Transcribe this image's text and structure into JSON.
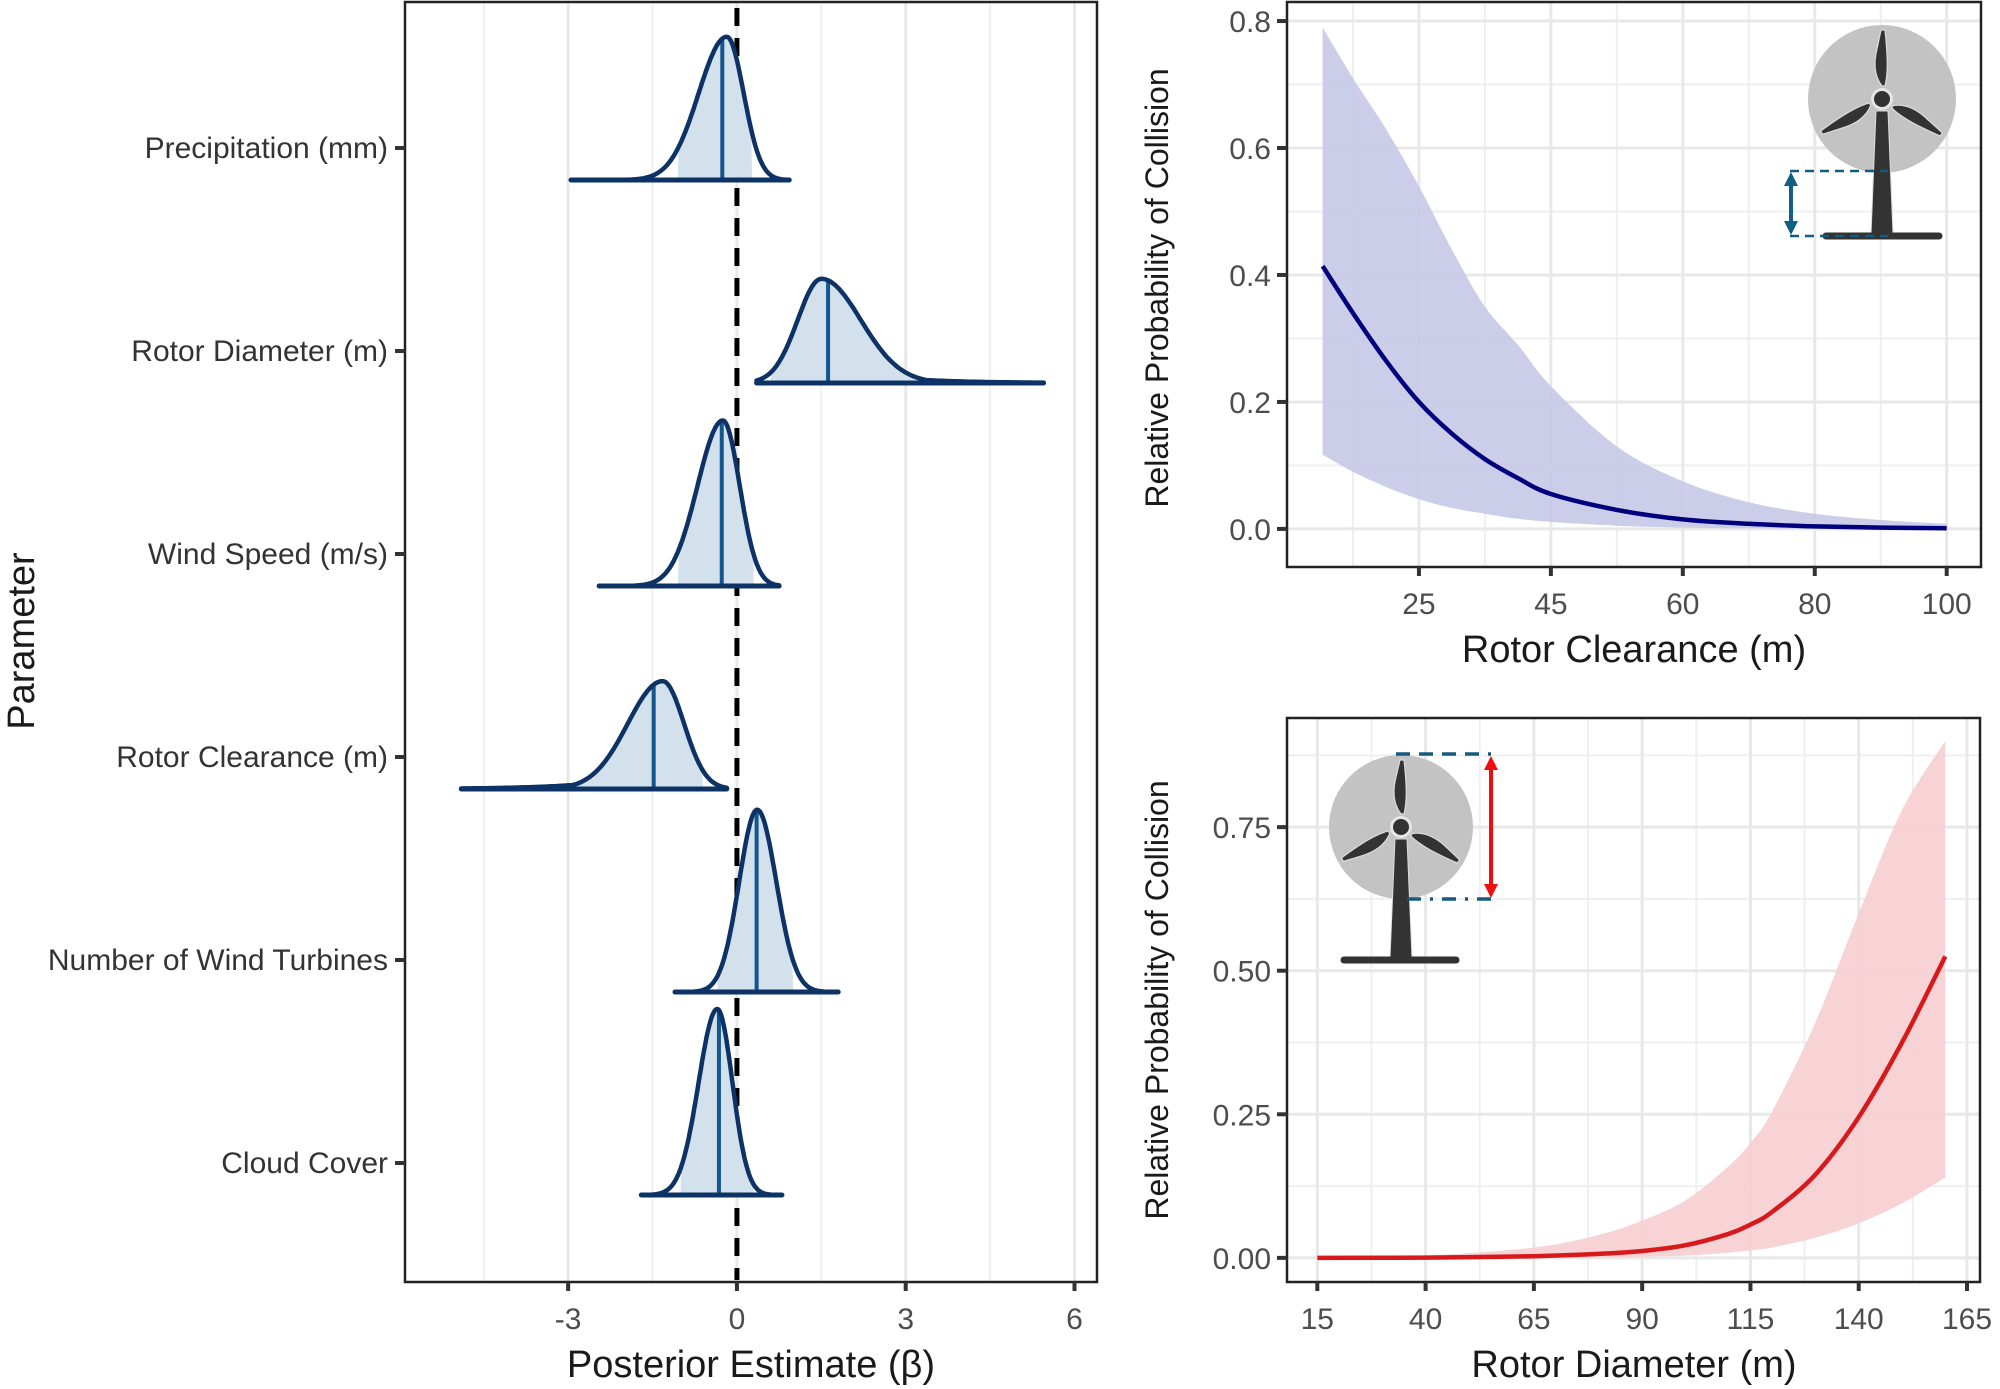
{
  "colors": {
    "density_outline": "#0d3266",
    "density_fill": "#d2e1ec",
    "median_line": "#13558e",
    "zero_line": "#000000",
    "clearance_line": "#00007f",
    "clearance_ribbon": "#c7c8e6",
    "diameter_line": "#d7191c",
    "diameter_ribbon": "#f6ced1",
    "turbine_disc": "#c3c3c3",
    "turbine_body": "#333333",
    "dim_dash": "#175a7f",
    "clearance_arrow": "#105f86",
    "diameter_arrow": "#ef0d0d"
  },
  "chart_data": [
    {
      "id": "posterior",
      "type": "area",
      "subtype": "ridgeline-density",
      "title": "",
      "xlabel": "Posterior Estimate (β)",
      "ylabel": "Parameter",
      "xlim": [
        -5.9,
        6.4
      ],
      "x_ticks": [
        -3,
        0,
        3,
        6
      ],
      "x_tick_labels": [
        "-3",
        "0",
        "3",
        "6"
      ],
      "x_minor_ticks": [
        -4.5,
        -1.5,
        1.5,
        4.5
      ],
      "reference_line": {
        "x": 0,
        "style": "dashed"
      },
      "grid": "vertical",
      "series": [
        {
          "name": "Precipitation (mm)",
          "min": -2.95,
          "max": 0.93,
          "mode": -0.18,
          "median": -0.26,
          "sd_left": 0.5,
          "sd_right": 0.3,
          "tail_left": 0.0,
          "tail_right": 0.0,
          "ci": [
            -1.05,
            0.27
          ],
          "rel_peak": 0.77
        },
        {
          "name": "Rotor Diameter (m)",
          "min": 0.35,
          "max": 5.45,
          "mode": 1.5,
          "median": 1.62,
          "sd_left": 0.42,
          "sd_right": 0.7,
          "tail_left": 0.0,
          "tail_right": 1.0,
          "ci": [
            0.6,
            3.3
          ],
          "rel_peak": 0.56
        },
        {
          "name": "Wind Speed (m/s)",
          "min": -2.45,
          "max": 0.75,
          "mode": -0.25,
          "median": -0.27,
          "sd_left": 0.45,
          "sd_right": 0.3,
          "tail_left": 0.0,
          "tail_right": 0.0,
          "ci": [
            -1.05,
            0.3
          ],
          "rel_peak": 0.89
        },
        {
          "name": "Rotor Clearance (m)",
          "min": -4.9,
          "max": -0.18,
          "mode": -1.32,
          "median": -1.48,
          "sd_left": 0.62,
          "sd_right": 0.38,
          "tail_left": 1.0,
          "tail_right": 0.0,
          "ci": [
            -3.3,
            -0.6
          ],
          "rel_peak": 0.58
        },
        {
          "name": "Number of Wind Turbines",
          "min": -1.1,
          "max": 1.8,
          "mode": 0.36,
          "median": 0.35,
          "sd_left": 0.32,
          "sd_right": 0.34,
          "tail_left": 0.0,
          "tail_right": 0.0,
          "ci": [
            -0.35,
            1.0
          ],
          "rel_peak": 0.98
        },
        {
          "name": "Cloud Cover",
          "min": -1.7,
          "max": 0.8,
          "mode": -0.35,
          "median": -0.32,
          "sd_left": 0.33,
          "sd_right": 0.27,
          "tail_left": 0.0,
          "tail_right": 0.0,
          "ci": [
            -1.0,
            0.3
          ],
          "rel_peak": 1.0
        }
      ]
    },
    {
      "id": "clearance",
      "type": "line",
      "title": "",
      "xlabel": "Rotor Clearance (m)",
      "ylabel": "Relative Probability of Collision",
      "x_tick_labels": [
        "25",
        "45",
        "60",
        "80",
        "100"
      ],
      "x_note": "tick labels are evenly spaced; x values below are in tick-position units (0 = '25', 4 = '100')",
      "xlim_ticks": [
        -1.0,
        4.26
      ],
      "ylim": [
        -0.06,
        0.83
      ],
      "y_ticks": [
        0.0,
        0.2,
        0.4,
        0.6,
        0.8
      ],
      "y_tick_labels": [
        "0.0",
        "0.2",
        "0.4",
        "0.6",
        "0.8"
      ],
      "grid": "both",
      "series": [
        {
          "name": "mean",
          "x": [
            -0.73,
            -0.5,
            -0.25,
            0,
            0.25,
            0.5,
            0.75,
            1,
            1.5,
            2,
            2.5,
            3,
            3.5,
            4
          ],
          "y": [
            0.414,
            0.34,
            0.265,
            0.2,
            0.15,
            0.11,
            0.08,
            0.055,
            0.03,
            0.015,
            0.008,
            0.004,
            0.002,
            0.001
          ]
        },
        {
          "name": "upper",
          "x": [
            -0.73,
            -0.5,
            -0.25,
            0,
            0.25,
            0.5,
            0.75,
            1,
            1.5,
            2,
            2.5,
            3,
            3.5,
            4
          ],
          "y": [
            0.79,
            0.71,
            0.63,
            0.54,
            0.44,
            0.35,
            0.29,
            0.225,
            0.13,
            0.075,
            0.042,
            0.024,
            0.014,
            0.008
          ]
        },
        {
          "name": "lower",
          "x": [
            -0.73,
            -0.5,
            -0.25,
            0,
            0.25,
            0.5,
            0.75,
            1,
            1.5,
            2,
            2.5,
            3,
            3.5,
            4
          ],
          "y": [
            0.117,
            0.09,
            0.066,
            0.047,
            0.033,
            0.024,
            0.016,
            0.011,
            0.005,
            0.002,
            0.001,
            0.0,
            0.0,
            0.0
          ]
        }
      ]
    },
    {
      "id": "diameter",
      "type": "line",
      "title": "",
      "xlabel": "Rotor Diameter (m)",
      "ylabel": "Relative Probability of Collision",
      "xlim": [
        8,
        168
      ],
      "x_ticks": [
        15,
        40,
        65,
        90,
        115,
        140,
        165
      ],
      "x_tick_labels": [
        "15",
        "40",
        "65",
        "90",
        "115",
        "140",
        "165"
      ],
      "ylim": [
        -0.042,
        0.94
      ],
      "y_ticks": [
        0.0,
        0.25,
        0.5,
        0.75
      ],
      "y_tick_labels": [
        "0.00",
        "0.25",
        "0.50",
        "0.75"
      ],
      "grid": "both",
      "series": [
        {
          "name": "mean",
          "x": [
            15,
            40,
            65,
            80,
            90,
            100,
            110,
            115,
            120,
            130,
            140,
            150,
            160
          ],
          "y": [
            0.0,
            0.0005,
            0.003,
            0.007,
            0.012,
            0.022,
            0.042,
            0.058,
            0.08,
            0.145,
            0.245,
            0.375,
            0.525
          ]
        },
        {
          "name": "upper",
          "x": [
            15,
            40,
            65,
            80,
            90,
            100,
            110,
            115,
            120,
            130,
            140,
            150,
            160
          ],
          "y": [
            0.0,
            0.004,
            0.018,
            0.04,
            0.065,
            0.1,
            0.16,
            0.2,
            0.255,
            0.41,
            0.6,
            0.78,
            0.9
          ]
        },
        {
          "name": "lower",
          "x": [
            15,
            40,
            65,
            80,
            90,
            100,
            110,
            115,
            120,
            130,
            140,
            150,
            160
          ],
          "y": [
            0.0,
            0.0,
            0.0002,
            0.001,
            0.002,
            0.004,
            0.009,
            0.013,
            0.018,
            0.035,
            0.06,
            0.095,
            0.14
          ]
        }
      ]
    }
  ]
}
